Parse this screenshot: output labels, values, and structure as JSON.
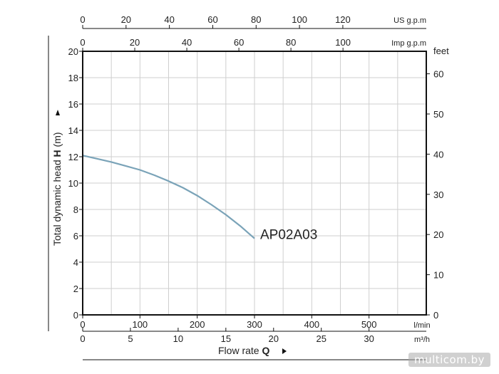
{
  "chart_data": {
    "type": "line",
    "title": "",
    "ylabel_text": "Total dynamic head ",
    "ylabel_bold": "H",
    "ylabel_unit": " (m)",
    "xlabel_text": "Flow rate ",
    "xlabel_bold": "Q",
    "ylim": [
      0,
      20
    ],
    "xlim": [
      0,
      600
    ],
    "y_ticks": [
      0,
      2,
      4,
      6,
      8,
      10,
      12,
      14,
      16,
      18,
      20
    ],
    "x_axes": {
      "lmin": {
        "unit": "l/min",
        "range": [
          0,
          600
        ],
        "ticks": [
          0,
          100,
          200,
          300,
          400,
          500
        ]
      },
      "m3h": {
        "unit": "m³/h",
        "range": [
          0,
          36
        ],
        "ticks": [
          0,
          5,
          10,
          15,
          20,
          25,
          30
        ]
      },
      "us_gpm": {
        "unit": "US g.p.m",
        "range": [
          0,
          158.5
        ],
        "ticks": [
          0,
          20,
          40,
          60,
          80,
          100,
          120
        ]
      },
      "imp_gpm": {
        "unit": "Imp g.p.m",
        "range": [
          0,
          132
        ],
        "ticks": [
          0,
          20,
          40,
          60,
          80,
          100
        ]
      }
    },
    "y_axis_right": {
      "unit": "feet",
      "range": [
        0,
        65.6
      ],
      "ticks": [
        0,
        10,
        20,
        30,
        40,
        50,
        60
      ]
    },
    "grid": true,
    "series": [
      {
        "name": "AP02A03",
        "color": "#7aa3b8",
        "x": [
          0,
          25,
          50,
          75,
          100,
          125,
          150,
          175,
          200,
          225,
          250,
          275,
          300
        ],
        "y": [
          12.1,
          11.85,
          11.6,
          11.3,
          11.0,
          10.6,
          10.15,
          9.65,
          9.05,
          8.35,
          7.6,
          6.75,
          5.8
        ]
      }
    ]
  },
  "watermark": "multicom.by"
}
